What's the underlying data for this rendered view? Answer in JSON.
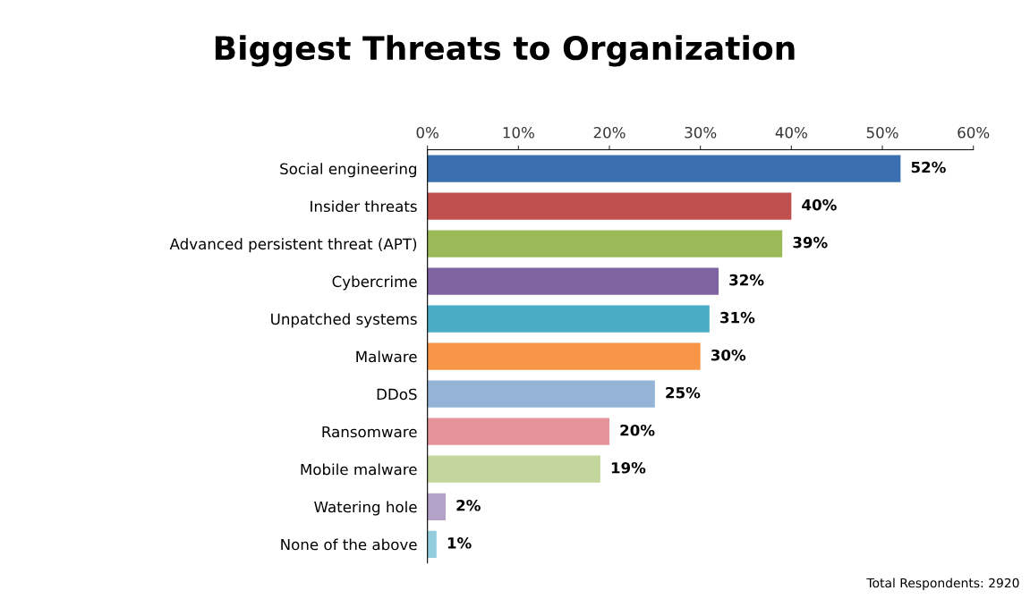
{
  "chart_data": {
    "type": "bar",
    "orientation": "horizontal",
    "title": "Biggest Threats to Organization",
    "categories": [
      "Social engineering",
      "Insider threats",
      "Advanced persistent threat (APT)",
      "Cybercrime",
      "Unpatched systems",
      "Malware",
      "DDoS",
      "Ransomware",
      "Mobile malware",
      "Watering hole",
      "None of the above"
    ],
    "values": [
      52,
      40,
      39,
      32,
      31,
      30,
      25,
      20,
      19,
      2,
      1
    ],
    "colors": [
      "#3a6fb0",
      "#c0504d",
      "#9bbb59",
      "#8064a2",
      "#4bacc6",
      "#f79646",
      "#95b3d7",
      "#e6949a",
      "#c3d69b",
      "#b3a2c7",
      "#93cddd"
    ],
    "value_labels": [
      "52%",
      "40%",
      "39%",
      "32%",
      "31%",
      "30%",
      "25%",
      "20%",
      "19%",
      "2%",
      "1%"
    ],
    "xlim": [
      0,
      60
    ],
    "xticks": [
      {
        "value": 0,
        "label": "0%"
      },
      {
        "value": 10,
        "label": "10%"
      },
      {
        "value": 20,
        "label": "20%"
      },
      {
        "value": 30,
        "label": "30%"
      },
      {
        "value": 40,
        "label": "40%"
      },
      {
        "value": 50,
        "label": "50%"
      },
      {
        "value": 60,
        "label": "60%"
      }
    ],
    "grid": false,
    "legend": false,
    "annotations": [
      "Total Respondents: 2920"
    ]
  }
}
